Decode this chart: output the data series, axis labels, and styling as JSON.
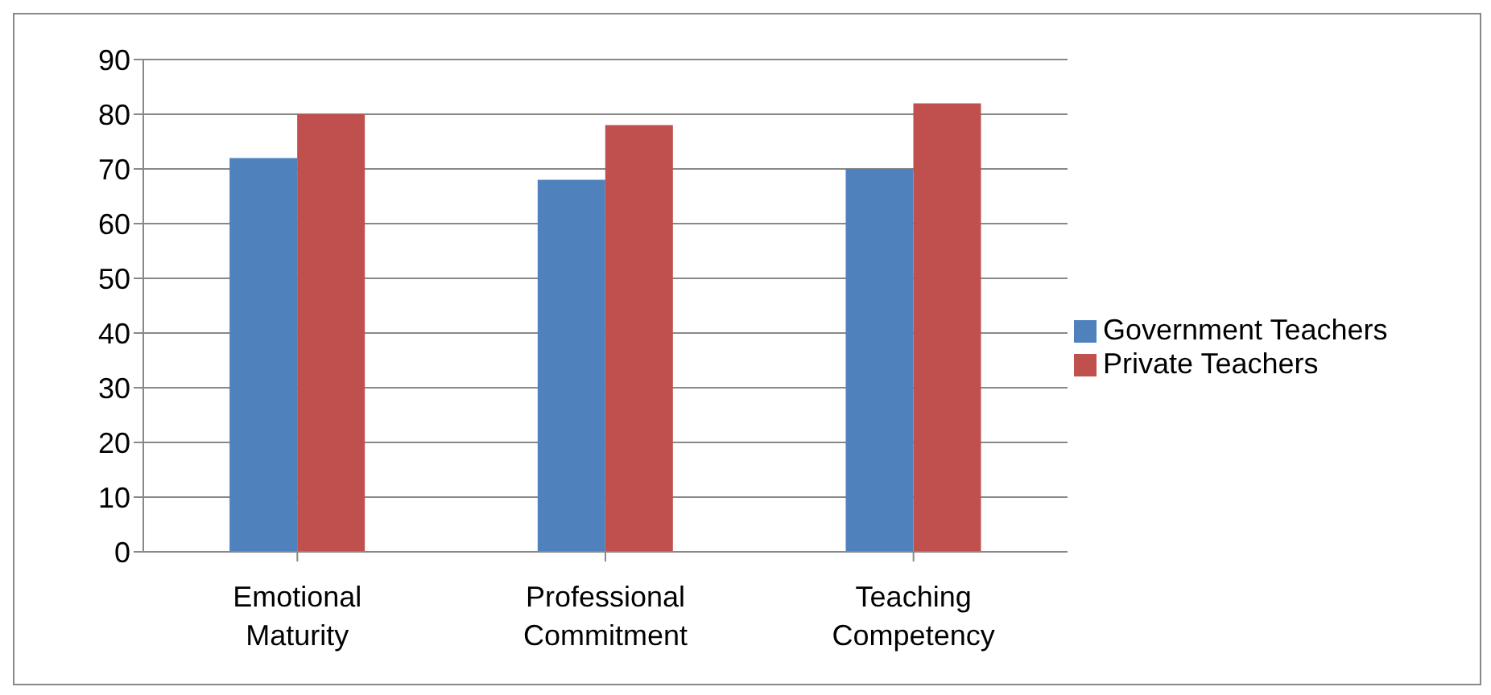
{
  "chart_data": {
    "type": "bar",
    "categories": [
      "Emotional Maturity",
      "Professional Commitment",
      "Teaching Competency"
    ],
    "series": [
      {
        "name": "Government Teachers",
        "color": "#4f81bd",
        "values": [
          72,
          68,
          70
        ]
      },
      {
        "name": "Private Teachers",
        "color": "#c0504d",
        "values": [
          80,
          78,
          82
        ]
      }
    ],
    "ylim": [
      0,
      90
    ],
    "yticks": [
      0,
      10,
      20,
      30,
      40,
      50,
      60,
      70,
      80,
      90
    ],
    "grid": "y",
    "legend": "right"
  }
}
